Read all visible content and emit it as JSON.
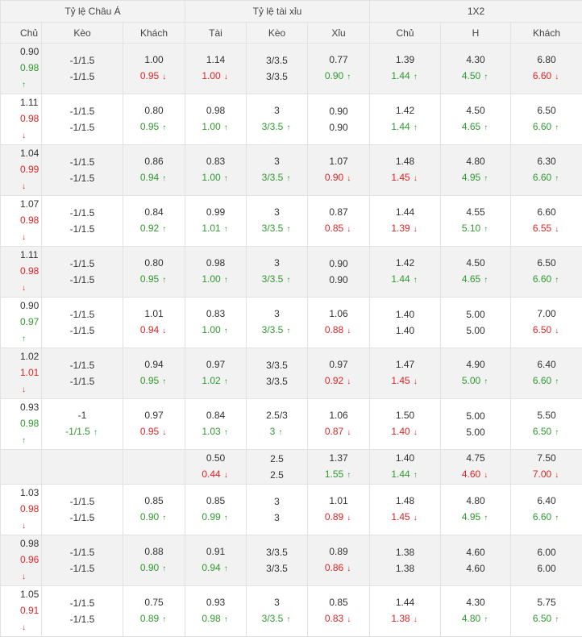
{
  "headers": {
    "groups": [
      "Tỷ lệ Châu Á",
      "Tỷ lệ tài xỉu",
      "1X2"
    ],
    "columns": [
      "Chủ",
      "Kèo",
      "Khách",
      "Tài",
      "Kèo",
      "Xỉu",
      "Chủ",
      "H",
      "Khách"
    ]
  },
  "rows": [
    [
      [
        {
          "v": "0.90"
        },
        {
          "v": "0.98",
          "d": "up"
        }
      ],
      [
        {
          "v": "-1/1.5"
        },
        {
          "v": "-1/1.5"
        }
      ],
      [
        {
          "v": "1.00"
        },
        {
          "v": "0.95",
          "d": "down"
        }
      ],
      [
        {
          "v": "1.14"
        },
        {
          "v": "1.00",
          "d": "down"
        }
      ],
      [
        {
          "v": "3/3.5"
        },
        {
          "v": "3/3.5"
        }
      ],
      [
        {
          "v": "0.77"
        },
        {
          "v": "0.90",
          "d": "up"
        }
      ],
      [
        {
          "v": "1.39"
        },
        {
          "v": "1.44",
          "d": "up"
        }
      ],
      [
        {
          "v": "4.30"
        },
        {
          "v": "4.50",
          "d": "up"
        }
      ],
      [
        {
          "v": "6.80"
        },
        {
          "v": "6.60",
          "d": "down"
        }
      ]
    ],
    [
      [
        {
          "v": "1.11"
        },
        {
          "v": "0.98",
          "d": "down"
        }
      ],
      [
        {
          "v": "-1/1.5"
        },
        {
          "v": "-1/1.5"
        }
      ],
      [
        {
          "v": "0.80"
        },
        {
          "v": "0.95",
          "d": "up"
        }
      ],
      [
        {
          "v": "0.98"
        },
        {
          "v": "1.00",
          "d": "up"
        }
      ],
      [
        {
          "v": "3"
        },
        {
          "v": "3/3.5",
          "d": "up"
        }
      ],
      [
        {
          "v": "0.90"
        },
        {
          "v": "0.90"
        }
      ],
      [
        {
          "v": "1.42"
        },
        {
          "v": "1.44",
          "d": "up"
        }
      ],
      [
        {
          "v": "4.50"
        },
        {
          "v": "4.65",
          "d": "up"
        }
      ],
      [
        {
          "v": "6.50"
        },
        {
          "v": "6.60",
          "d": "up"
        }
      ]
    ],
    [
      [
        {
          "v": "1.04"
        },
        {
          "v": "0.99",
          "d": "down"
        }
      ],
      [
        {
          "v": "-1/1.5"
        },
        {
          "v": "-1/1.5"
        }
      ],
      [
        {
          "v": "0.86"
        },
        {
          "v": "0.94",
          "d": "up"
        }
      ],
      [
        {
          "v": "0.83"
        },
        {
          "v": "1.00",
          "d": "up"
        }
      ],
      [
        {
          "v": "3"
        },
        {
          "v": "3/3.5",
          "d": "up"
        }
      ],
      [
        {
          "v": "1.07"
        },
        {
          "v": "0.90",
          "d": "down"
        }
      ],
      [
        {
          "v": "1.48"
        },
        {
          "v": "1.45",
          "d": "down"
        }
      ],
      [
        {
          "v": "4.80"
        },
        {
          "v": "4.95",
          "d": "up"
        }
      ],
      [
        {
          "v": "6.30"
        },
        {
          "v": "6.60",
          "d": "up"
        }
      ]
    ],
    [
      [
        {
          "v": "1.07"
        },
        {
          "v": "0.98",
          "d": "down"
        }
      ],
      [
        {
          "v": "-1/1.5"
        },
        {
          "v": "-1/1.5"
        }
      ],
      [
        {
          "v": "0.84"
        },
        {
          "v": "0.92",
          "d": "up"
        }
      ],
      [
        {
          "v": "0.99"
        },
        {
          "v": "1.01",
          "d": "up"
        }
      ],
      [
        {
          "v": "3"
        },
        {
          "v": "3/3.5",
          "d": "up"
        }
      ],
      [
        {
          "v": "0.87"
        },
        {
          "v": "0.85",
          "d": "down"
        }
      ],
      [
        {
          "v": "1.44"
        },
        {
          "v": "1.39",
          "d": "down"
        }
      ],
      [
        {
          "v": "4.55"
        },
        {
          "v": "5.10",
          "d": "up"
        }
      ],
      [
        {
          "v": "6.60"
        },
        {
          "v": "6.55",
          "d": "down"
        }
      ]
    ],
    [
      [
        {
          "v": "1.11"
        },
        {
          "v": "0.98",
          "d": "down"
        }
      ],
      [
        {
          "v": "-1/1.5"
        },
        {
          "v": "-1/1.5"
        }
      ],
      [
        {
          "v": "0.80"
        },
        {
          "v": "0.95",
          "d": "up"
        }
      ],
      [
        {
          "v": "0.98"
        },
        {
          "v": "1.00",
          "d": "up"
        }
      ],
      [
        {
          "v": "3"
        },
        {
          "v": "3/3.5",
          "d": "up"
        }
      ],
      [
        {
          "v": "0.90"
        },
        {
          "v": "0.90"
        }
      ],
      [
        {
          "v": "1.42"
        },
        {
          "v": "1.44",
          "d": "up"
        }
      ],
      [
        {
          "v": "4.50"
        },
        {
          "v": "4.65",
          "d": "up"
        }
      ],
      [
        {
          "v": "6.50"
        },
        {
          "v": "6.60",
          "d": "up"
        }
      ]
    ],
    [
      [
        {
          "v": "0.90"
        },
        {
          "v": "0.97",
          "d": "up"
        }
      ],
      [
        {
          "v": "-1/1.5"
        },
        {
          "v": "-1/1.5"
        }
      ],
      [
        {
          "v": "1.01"
        },
        {
          "v": "0.94",
          "d": "down"
        }
      ],
      [
        {
          "v": "0.83"
        },
        {
          "v": "1.00",
          "d": "up"
        }
      ],
      [
        {
          "v": "3"
        },
        {
          "v": "3/3.5",
          "d": "up"
        }
      ],
      [
        {
          "v": "1.06"
        },
        {
          "v": "0.88",
          "d": "down"
        }
      ],
      [
        {
          "v": "1.40"
        },
        {
          "v": "1.40"
        }
      ],
      [
        {
          "v": "5.00"
        },
        {
          "v": "5.00"
        }
      ],
      [
        {
          "v": "7.00"
        },
        {
          "v": "6.50",
          "d": "down"
        }
      ]
    ],
    [
      [
        {
          "v": "1.02"
        },
        {
          "v": "1.01",
          "d": "down"
        }
      ],
      [
        {
          "v": "-1/1.5"
        },
        {
          "v": "-1/1.5"
        }
      ],
      [
        {
          "v": "0.94"
        },
        {
          "v": "0.95",
          "d": "up"
        }
      ],
      [
        {
          "v": "0.97"
        },
        {
          "v": "1.02",
          "d": "up"
        }
      ],
      [
        {
          "v": "3/3.5"
        },
        {
          "v": "3/3.5"
        }
      ],
      [
        {
          "v": "0.97"
        },
        {
          "v": "0.92",
          "d": "down"
        }
      ],
      [
        {
          "v": "1.47"
        },
        {
          "v": "1.45",
          "d": "down"
        }
      ],
      [
        {
          "v": "4.90"
        },
        {
          "v": "5.00",
          "d": "up"
        }
      ],
      [
        {
          "v": "6.40"
        },
        {
          "v": "6.60",
          "d": "up"
        }
      ]
    ],
    [
      [
        {
          "v": "0.93"
        },
        {
          "v": "0.98",
          "d": "up"
        }
      ],
      [
        {
          "v": "-1"
        },
        {
          "v": "-1/1.5",
          "d": "up"
        }
      ],
      [
        {
          "v": "0.97"
        },
        {
          "v": "0.95",
          "d": "down"
        }
      ],
      [
        {
          "v": "0.84"
        },
        {
          "v": "1.03",
          "d": "up"
        }
      ],
      [
        {
          "v": "2.5/3"
        },
        {
          "v": "3",
          "d": "up"
        }
      ],
      [
        {
          "v": "1.06"
        },
        {
          "v": "0.87",
          "d": "down"
        }
      ],
      [
        {
          "v": "1.50"
        },
        {
          "v": "1.40",
          "d": "down"
        }
      ],
      [
        {
          "v": "5.00"
        },
        {
          "v": "5.00"
        }
      ],
      [
        {
          "v": "5.50"
        },
        {
          "v": "6.50",
          "d": "up"
        }
      ]
    ],
    [
      [
        {
          "v": ""
        },
        {
          "v": ""
        }
      ],
      [
        {
          "v": ""
        },
        {
          "v": ""
        }
      ],
      [
        {
          "v": ""
        },
        {
          "v": ""
        }
      ],
      [
        {
          "v": "0.50"
        },
        {
          "v": "0.44",
          "d": "down"
        }
      ],
      [
        {
          "v": "2.5"
        },
        {
          "v": "2.5"
        }
      ],
      [
        {
          "v": "1.37"
        },
        {
          "v": "1.55",
          "d": "up"
        }
      ],
      [
        {
          "v": "1.40"
        },
        {
          "v": "1.44",
          "d": "up"
        }
      ],
      [
        {
          "v": "4.75"
        },
        {
          "v": "4.60",
          "d": "down"
        }
      ],
      [
        {
          "v": "7.50"
        },
        {
          "v": "7.00",
          "d": "down"
        }
      ]
    ],
    [
      [
        {
          "v": "1.03"
        },
        {
          "v": "0.98",
          "d": "down"
        }
      ],
      [
        {
          "v": "-1/1.5"
        },
        {
          "v": "-1/1.5"
        }
      ],
      [
        {
          "v": "0.85"
        },
        {
          "v": "0.90",
          "d": "up"
        }
      ],
      [
        {
          "v": "0.85"
        },
        {
          "v": "0.99",
          "d": "up"
        }
      ],
      [
        {
          "v": "3"
        },
        {
          "v": "3"
        }
      ],
      [
        {
          "v": "1.01"
        },
        {
          "v": "0.89",
          "d": "down"
        }
      ],
      [
        {
          "v": "1.48"
        },
        {
          "v": "1.45",
          "d": "down"
        }
      ],
      [
        {
          "v": "4.80"
        },
        {
          "v": "4.95",
          "d": "up"
        }
      ],
      [
        {
          "v": "6.40"
        },
        {
          "v": "6.60",
          "d": "up"
        }
      ]
    ],
    [
      [
        {
          "v": "0.98"
        },
        {
          "v": "0.96",
          "d": "down"
        }
      ],
      [
        {
          "v": "-1/1.5"
        },
        {
          "v": "-1/1.5"
        }
      ],
      [
        {
          "v": "0.88"
        },
        {
          "v": "0.90",
          "d": "up"
        }
      ],
      [
        {
          "v": "0.91"
        },
        {
          "v": "0.94",
          "d": "up"
        }
      ],
      [
        {
          "v": "3/3.5"
        },
        {
          "v": "3/3.5"
        }
      ],
      [
        {
          "v": "0.89"
        },
        {
          "v": "0.86",
          "d": "down"
        }
      ],
      [
        {
          "v": "1.38"
        },
        {
          "v": "1.38"
        }
      ],
      [
        {
          "v": "4.60"
        },
        {
          "v": "4.60"
        }
      ],
      [
        {
          "v": "6.00"
        },
        {
          "v": "6.00"
        }
      ]
    ],
    [
      [
        {
          "v": "1.05"
        },
        {
          "v": "0.91",
          "d": "down"
        }
      ],
      [
        {
          "v": "-1/1.5"
        },
        {
          "v": "-1/1.5"
        }
      ],
      [
        {
          "v": "0.75"
        },
        {
          "v": "0.89",
          "d": "up"
        }
      ],
      [
        {
          "v": "0.93"
        },
        {
          "v": "0.98",
          "d": "up"
        }
      ],
      [
        {
          "v": "3"
        },
        {
          "v": "3/3.5",
          "d": "up"
        }
      ],
      [
        {
          "v": "0.85"
        },
        {
          "v": "0.83",
          "d": "down"
        }
      ],
      [
        {
          "v": "1.44"
        },
        {
          "v": "1.38",
          "d": "down"
        }
      ],
      [
        {
          "v": "4.30"
        },
        {
          "v": "4.80",
          "d": "up"
        }
      ],
      [
        {
          "v": "5.75"
        },
        {
          "v": "6.50",
          "d": "up"
        }
      ]
    ]
  ],
  "colors": {
    "up": "#2f9a2f",
    "down": "#e02424",
    "header_bg": "#f3f3f3",
    "alt_row_bg": "#f2f2f2",
    "border": "#e2e2e2"
  },
  "icons": {
    "up": "arrow-up-icon",
    "down": "arrow-down-icon"
  }
}
